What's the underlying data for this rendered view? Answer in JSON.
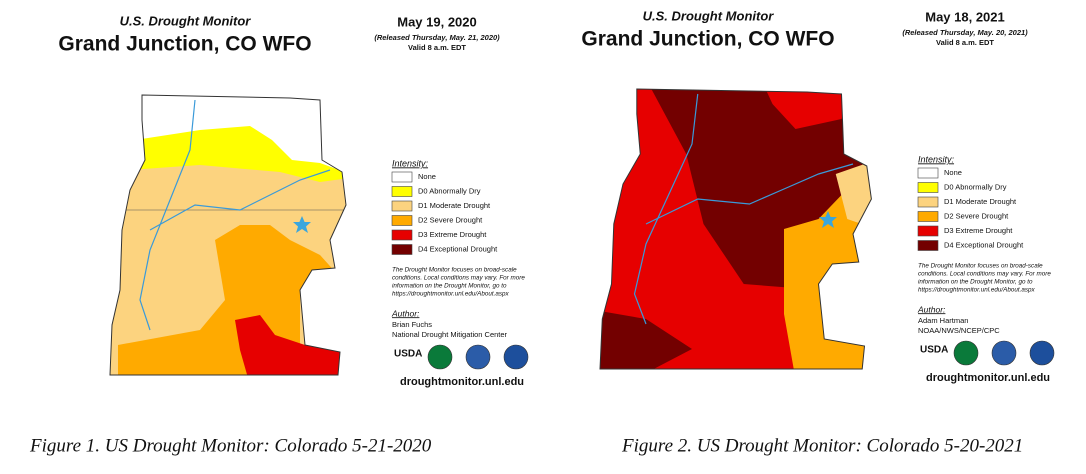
{
  "panels": [
    {
      "subtitle": "U.S. Drought Monitor",
      "title": "Grand Junction, CO WFO",
      "date": "May 19, 2020",
      "released": "(Released Thursday, May. 21, 2020)",
      "valid": "Valid 8 a.m. EDT",
      "legend_title": "Intensity:",
      "legend": [
        "None",
        "D0 Abnormally Dry",
        "D1 Moderate Drought",
        "D2 Severe Drought",
        "D3 Extreme Drought",
        "D4 Exceptional Drought"
      ],
      "note": [
        "The Drought Monitor focuses on broad-scale",
        "conditions. Local conditions may vary. For more",
        "information on the Drought Monitor, go to",
        "https://droughtmonitor.unl.edu/About.aspx"
      ],
      "author_label": "Author:",
      "author": [
        "Brian Fuchs",
        "National Drought Mitigation Center"
      ],
      "logo_text": "USDA",
      "url": "droughtmonitor.unl.edu",
      "caption": "Figure 1. US Drought Monitor: Colorado 5-21-2020"
    },
    {
      "subtitle": "U.S. Drought Monitor",
      "title": "Grand Junction, CO WFO",
      "date": "May 18, 2021",
      "released": "(Released Thursday, May. 20, 2021)",
      "valid": "Valid 8 a.m. EDT",
      "legend_title": "Intensity:",
      "legend": [
        "None",
        "D0 Abnormally Dry",
        "D1 Moderate Drought",
        "D2 Severe Drought",
        "D3 Extreme Drought",
        "D4 Exceptional Drought"
      ],
      "note": [
        "The Drought Monitor focuses on broad-scale",
        "conditions. Local conditions may vary. For more",
        "information on the Drought Monitor, go to",
        "https://droughtmonitor.unl.edu/About.aspx"
      ],
      "author_label": "Author:",
      "author": [
        "Adam Hartman",
        "NOAA/NWS/NCEP/CPC"
      ],
      "logo_text": "USDA",
      "url": "droughtmonitor.unl.edu",
      "caption": "Figure 2. US Drought Monitor: Colorado 5-20-2021"
    }
  ]
}
